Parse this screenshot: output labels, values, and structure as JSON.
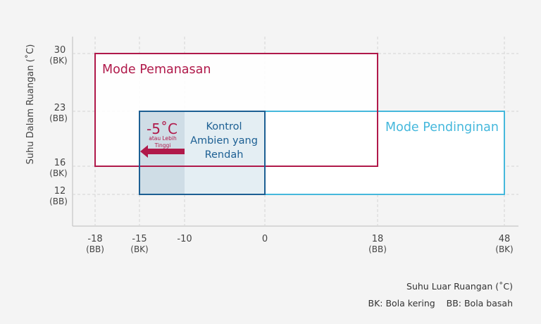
{
  "yaxis_title": "Suhu Dalam Ruangan (˚C)",
  "xaxis_title": "Suhu Luar Ruangan (˚C)",
  "legend_note": "BK: Bola kering    BB: Bola basah",
  "y_ticks": [
    {
      "value": 30,
      "label": "30",
      "sub": "(BK)"
    },
    {
      "value": 23,
      "label": "23",
      "sub": "(BB)"
    },
    {
      "value": 16,
      "label": "16",
      "sub": "(BK)"
    },
    {
      "value": 12,
      "label": "12",
      "sub": "(BB)"
    }
  ],
  "x_ticks": [
    {
      "value": -18,
      "label": "-18",
      "sub": "(BB)"
    },
    {
      "value": -15,
      "label": "-15",
      "sub": "(BK)"
    },
    {
      "value": -10,
      "label": "-10",
      "sub": ""
    },
    {
      "value": 0,
      "label": "0",
      "sub": ""
    },
    {
      "value": 18,
      "label": "18",
      "sub": "(BB)"
    },
    {
      "value": 48,
      "label": "48",
      "sub": "(BK)"
    }
  ],
  "colors": {
    "heating": "#b0194a",
    "cooling": "#45b8dc",
    "low_ambient": "#1c5f93",
    "grid": "#d4d4d4",
    "axis": "#bdbdbd"
  },
  "heating_mode": {
    "label": "Mode Pemanasan",
    "x_range": [
      -18,
      18
    ],
    "y_range": [
      16,
      30
    ]
  },
  "cooling_mode": {
    "label": "Mode Pendinginan",
    "x_range": [
      -15,
      48
    ],
    "y_range": [
      12,
      23
    ]
  },
  "low_ambient": {
    "label_lines": [
      "Kontrol",
      "Ambien yang",
      "Rendah"
    ],
    "x_range": [
      -15,
      0
    ],
    "y_range": [
      12,
      23
    ],
    "extended_x_range": [
      -15,
      -10
    ]
  },
  "temp_note": {
    "value": "-5˚C",
    "sub_lines": [
      "atau Lebih",
      "Tinggi"
    ]
  }
}
